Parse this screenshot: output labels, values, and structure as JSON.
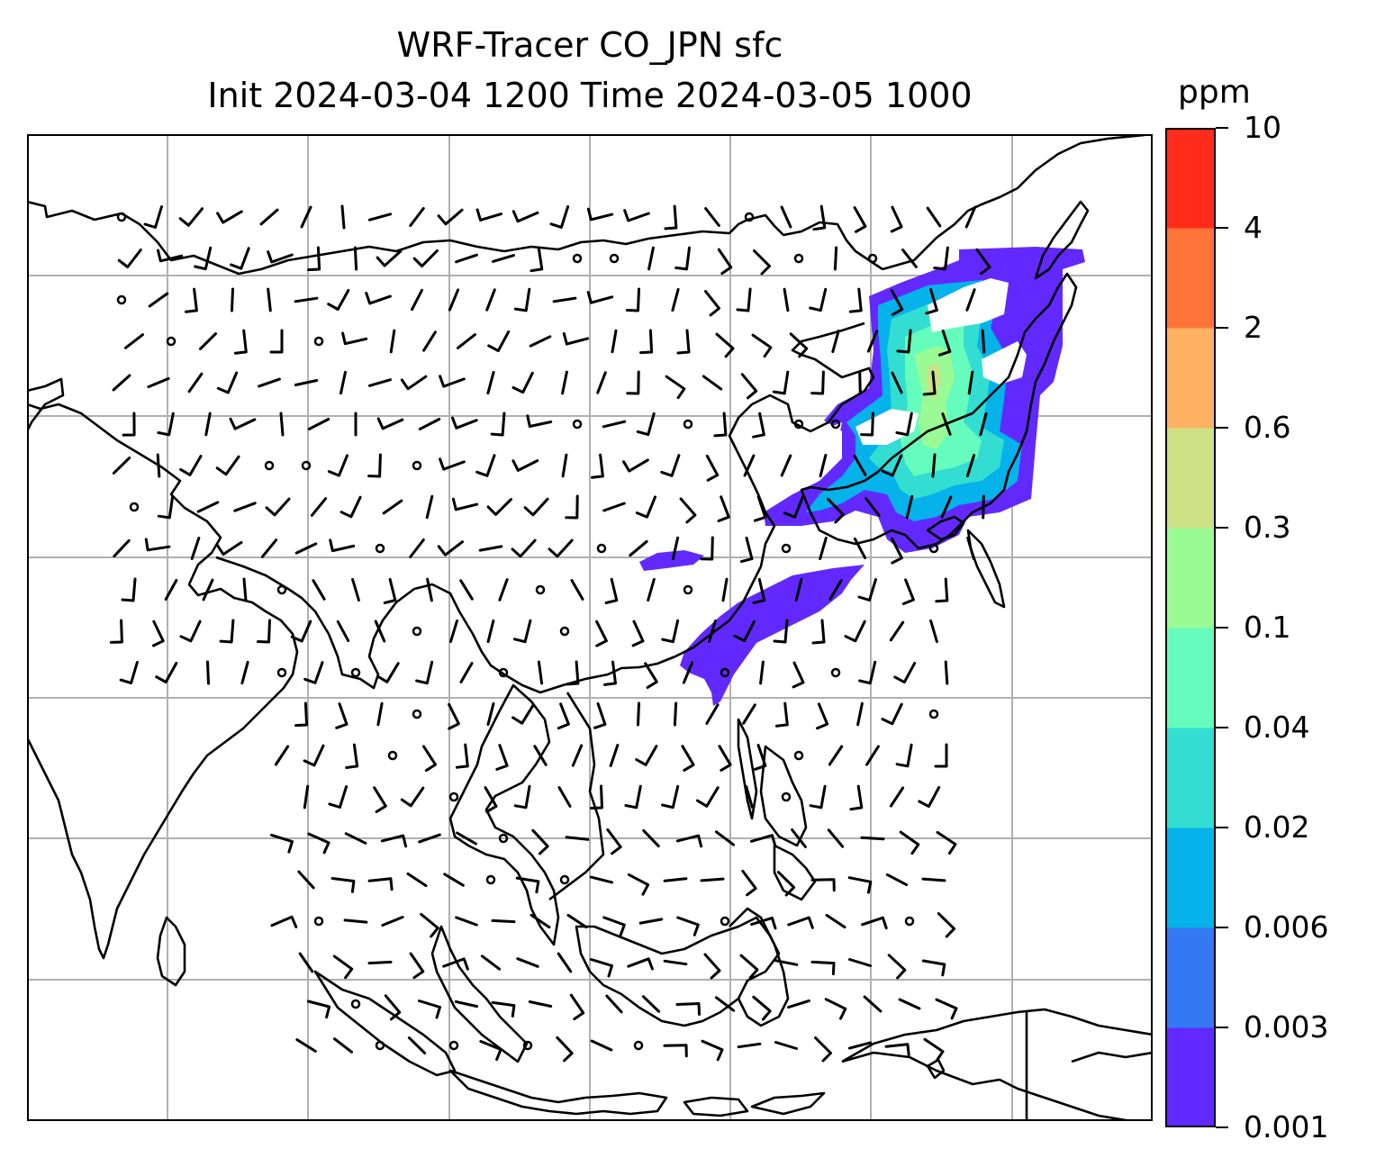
{
  "title": {
    "line1": "WRF-Tracer CO_JPN sfc",
    "line2": "Init 2024-03-04 1200 Time 2024-03-05 1000"
  },
  "colorbar": {
    "unit": "ppm",
    "levels": [
      "0.001",
      "0.003",
      "0.006",
      "0.02",
      "0.04",
      "0.1",
      "0.3",
      "0.6",
      "2",
      "4",
      "10"
    ],
    "colors": [
      "#6229ff",
      "#3479f1",
      "#05b3ea",
      "#33ddd1",
      "#66fcbd",
      "#9afb94",
      "#cfe187",
      "#ffb261",
      "#ff7439",
      "#ff2c1b"
    ]
  },
  "map": {
    "background": "#ffffff",
    "coastline_color": "#000000",
    "grid_color": "#b0b0b0",
    "barb_color": "#000000"
  }
}
